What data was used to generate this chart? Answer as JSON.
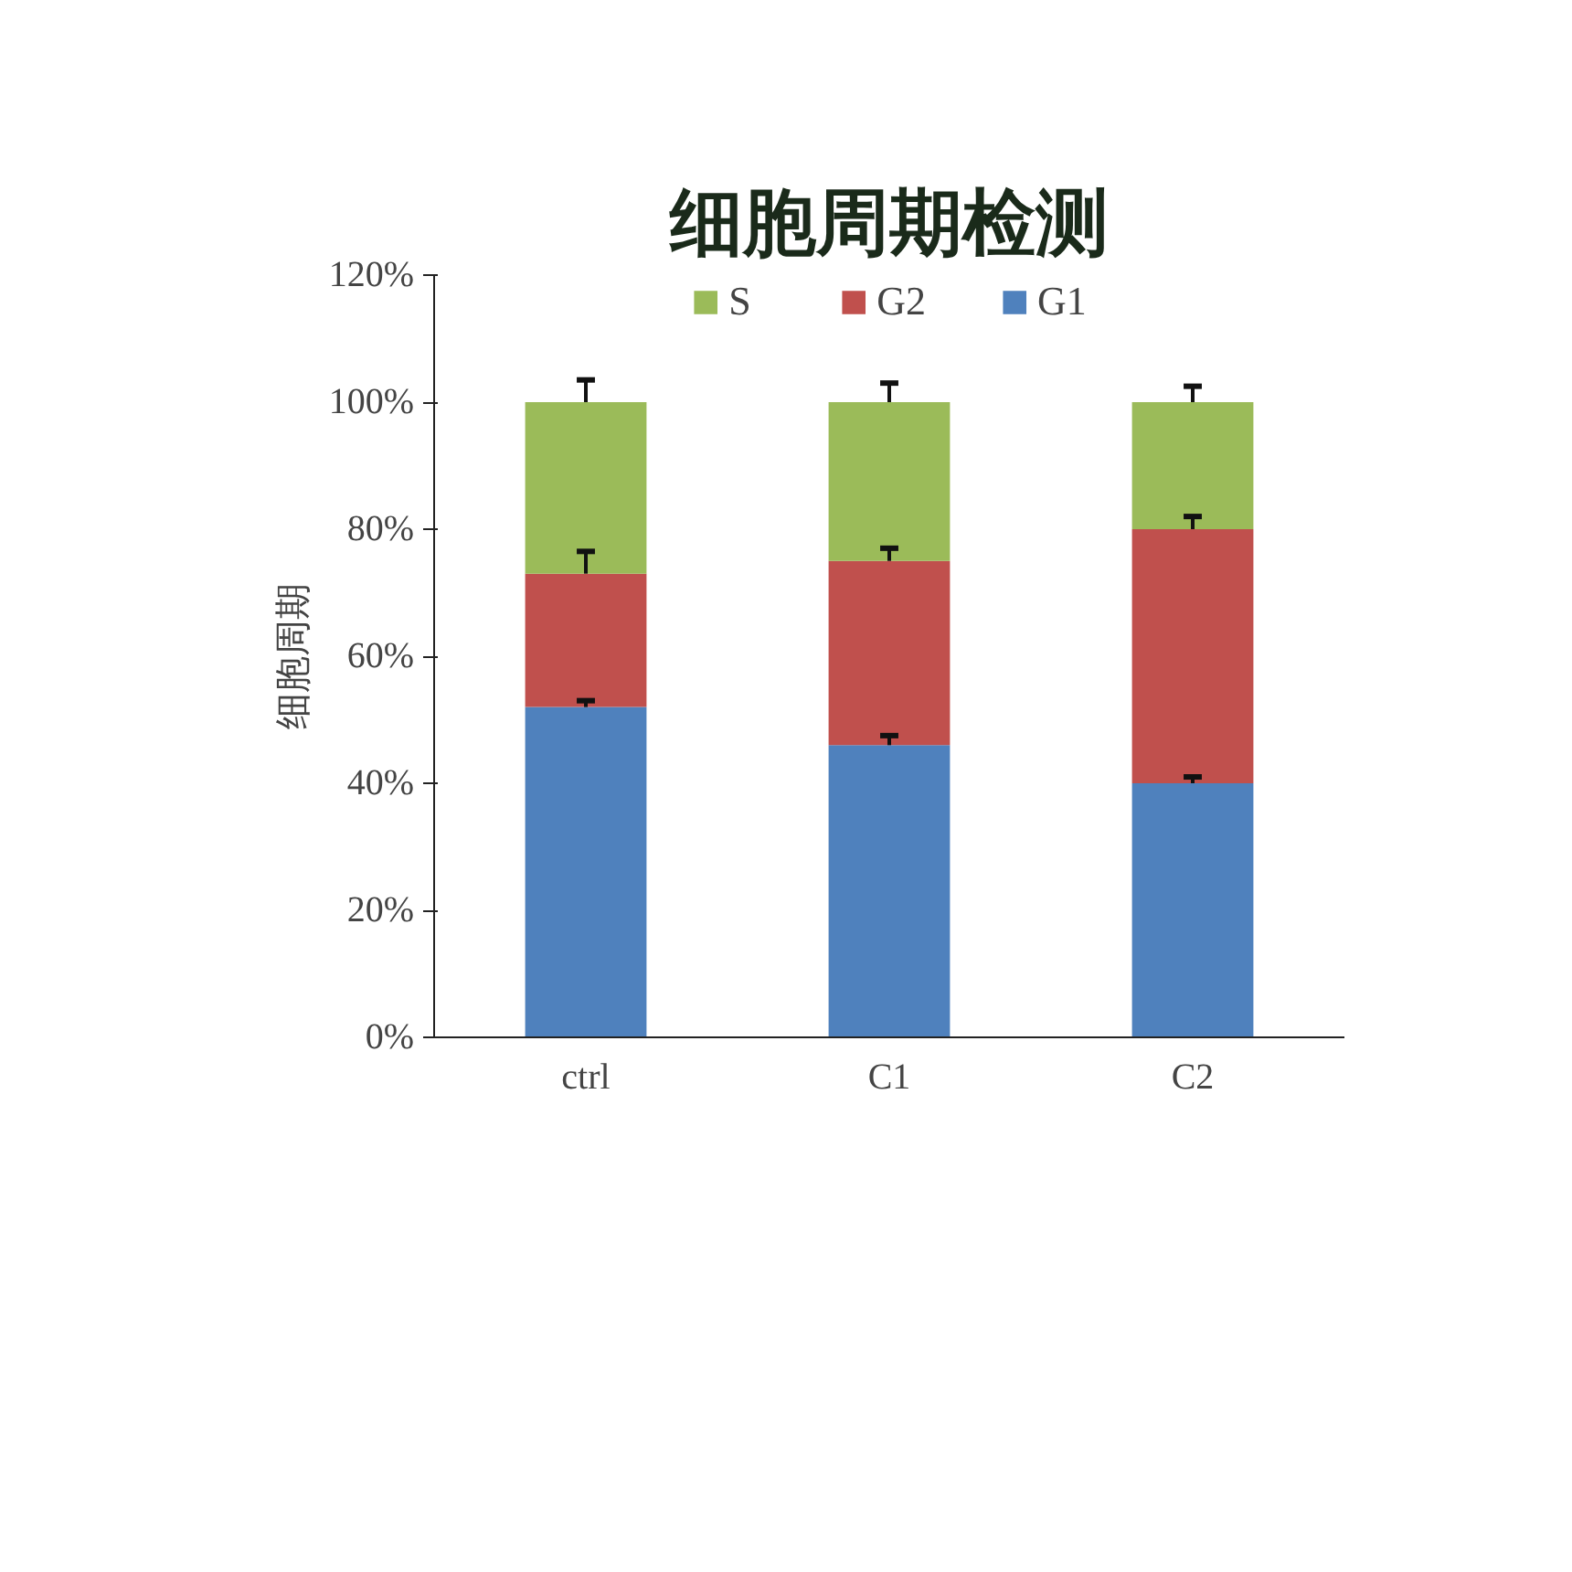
{
  "chart_data": {
    "type": "bar",
    "stacked": true,
    "title": "细胞周期检测",
    "ylabel": "细胞周期",
    "categories": [
      "ctrl",
      "C1",
      "C2"
    ],
    "series": [
      {
        "name": "G1",
        "color": "#4f81bd",
        "values": [
          52,
          46,
          40
        ],
        "errors": [
          [
            52,
            53
          ],
          [
            46,
            47.5
          ],
          [
            40,
            41
          ]
        ]
      },
      {
        "name": "G2",
        "color": "#c0504d",
        "values": [
          21,
          29,
          40
        ],
        "errors": [
          [
            73,
            76.5
          ],
          [
            75,
            77
          ],
          [
            80,
            82
          ]
        ]
      },
      {
        "name": "S",
        "color": "#9bbb59",
        "values": [
          27,
          25,
          20
        ],
        "errors": [
          [
            100,
            103.5
          ],
          [
            100,
            103
          ],
          [
            100,
            102.5
          ]
        ]
      }
    ],
    "ylim": [
      0,
      120
    ],
    "yticks": [
      {
        "value": 0,
        "label": "0%"
      },
      {
        "value": 20,
        "label": "20%"
      },
      {
        "value": 40,
        "label": "40%"
      },
      {
        "value": 60,
        "label": "60%"
      },
      {
        "value": 80,
        "label": "80%"
      },
      {
        "value": 100,
        "label": "100%"
      },
      {
        "value": 120,
        "label": "120%"
      }
    ],
    "grid": false,
    "legend": "top"
  }
}
